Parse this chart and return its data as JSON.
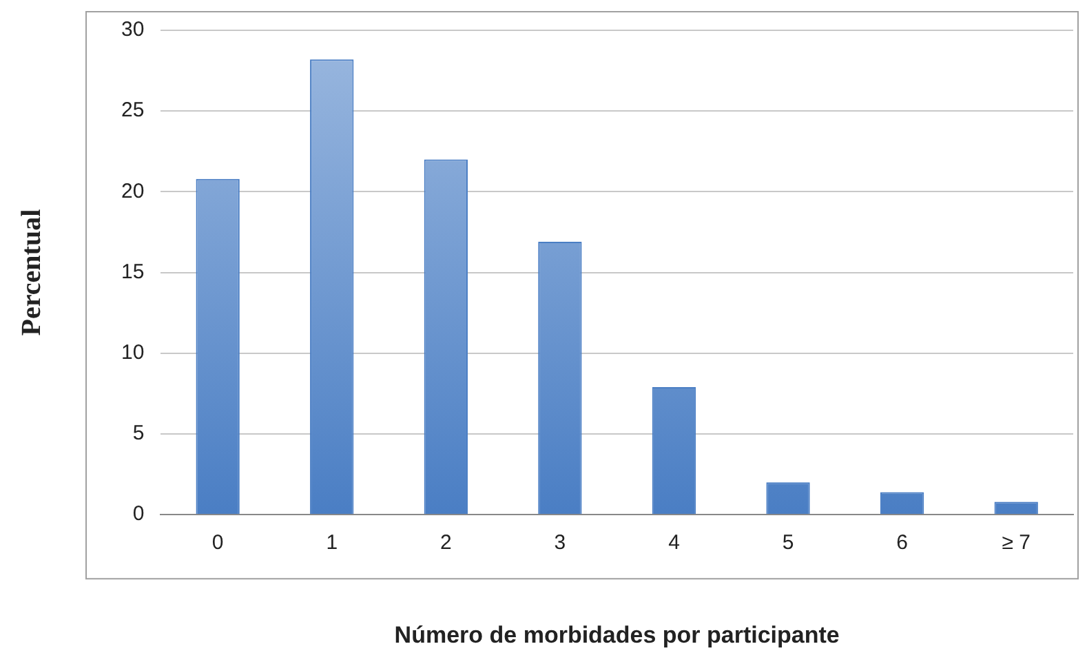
{
  "chart_data": {
    "type": "bar",
    "xlabel": "Número de morbidades por participante",
    "ylabel": "Percentual",
    "categories": [
      "0",
      "1",
      "2",
      "3",
      "4",
      "5",
      "6",
      "≥ 7"
    ],
    "values": [
      20.8,
      28.2,
      22.0,
      16.9,
      7.9,
      2.0,
      1.4,
      0.8
    ],
    "color": "#4a7ec4",
    "ylim": [
      0,
      30
    ],
    "yticks": [
      0,
      5,
      10,
      15,
      20,
      25,
      30
    ],
    "grid": "y",
    "legend": false
  }
}
